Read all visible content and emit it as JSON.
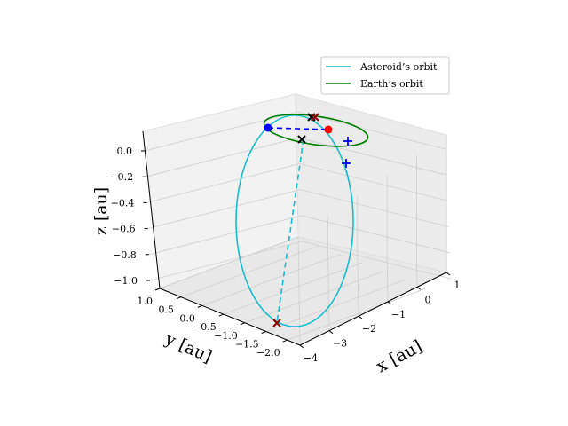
{
  "chart_data": {
    "type": "3d-line",
    "title": "",
    "xlabel": "x [au]",
    "ylabel": "y [au]",
    "zlabel": "z [au]",
    "xticks": [
      1,
      0,
      -1,
      -2,
      -3,
      -4
    ],
    "yticks": [
      1.0,
      0.5,
      0.0,
      -0.5,
      -1.0,
      -1.5,
      -2.0
    ],
    "zticks": [
      0.0,
      -0.2,
      -0.4,
      -0.6,
      -0.8,
      -1.0
    ],
    "xtick_labels": [
      "1",
      "0",
      "−1",
      "−2",
      "−3",
      "−4"
    ],
    "ytick_labels": [
      "1.0",
      "0.5",
      "0.0",
      "−0.5",
      "−1.0",
      "−1.5",
      "−2.0"
    ],
    "ztick_labels": [
      "0.0",
      "−0.2",
      "−0.4",
      "−0.6",
      "−0.8",
      "−1.0"
    ],
    "grid": true,
    "legend_position": "top-right",
    "series": [
      {
        "name": "Asteroid’s orbit",
        "color": "#17becf",
        "style": "solid",
        "center": [
          -1.2,
          -0.9,
          -0.55
        ],
        "radius": 1.1,
        "plane": "vertical"
      },
      {
        "name": "Earth’s orbit",
        "color": "#008000",
        "style": "solid",
        "center": [
          0.0,
          0.0,
          0.0
        ],
        "radius": 1.0,
        "plane": "horizontal"
      }
    ],
    "markers": [
      {
        "name": "asteroid-cross-near-ecliptic",
        "symbol": "x",
        "color": "#000000",
        "xyz": [
          0.05,
          -0.95,
          0.0
        ]
      },
      {
        "name": "asteroid-cross-ecliptic-node",
        "symbol": "x",
        "color": "#000000",
        "xyz": [
          -0.35,
          0.3,
          0.0
        ]
      },
      {
        "name": "asteroid-cross-low",
        "symbol": "x",
        "color": "#8b0000",
        "xyz": [
          -1.25,
          -2.1,
          -1.0
        ]
      },
      {
        "name": "earth-position",
        "symbol": "o",
        "color": "#ff0000",
        "xyz": [
          0.75,
          -0.55,
          0.0
        ]
      },
      {
        "name": "blue-position",
        "symbol": "o",
        "color": "#0000ff",
        "xyz": [
          -1.05,
          0.95,
          0.0
        ]
      },
      {
        "name": "blue-plus-1",
        "symbol": "+",
        "color": "#0000ff",
        "xyz": [
          0.9,
          -0.7,
          0.0
        ]
      },
      {
        "name": "blue-plus-2",
        "symbol": "+",
        "color": "#0000ff",
        "xyz": [
          0.95,
          -0.9,
          -0.1
        ]
      }
    ],
    "dashed_links": [
      {
        "name": "blue-dashed-link",
        "color": "#0000ff",
        "from": [
          -1.05,
          0.95,
          0.0
        ],
        "to": [
          0.75,
          -0.55,
          0.0
        ]
      },
      {
        "name": "cyan-dashed-link",
        "color": "#17becf",
        "from": [
          -0.35,
          0.3,
          0.0
        ],
        "to": [
          -1.25,
          -2.1,
          -1.0
        ]
      }
    ]
  }
}
